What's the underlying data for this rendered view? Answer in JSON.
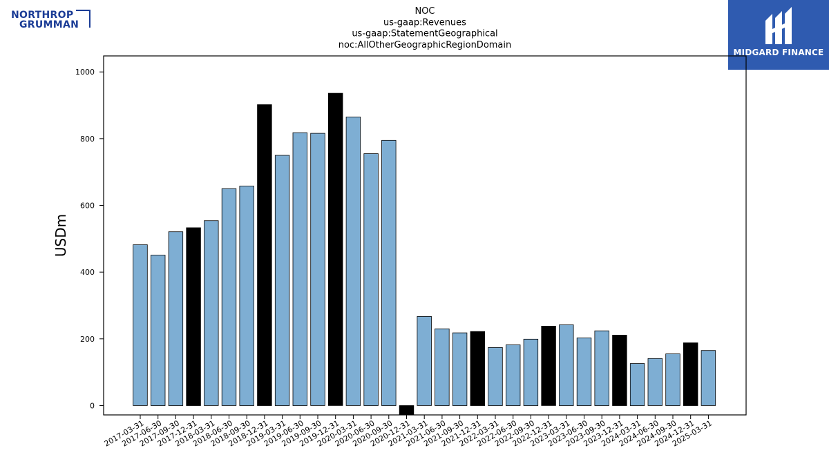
{
  "header": {
    "company_logo": "NORTHROP GRUMMAN",
    "company_logo_line1": "NORTHROP",
    "company_logo_line2": "GRUMMAN",
    "badge_text": "MIDGARD FINANCE"
  },
  "chart_data": {
    "type": "bar",
    "title_lines": [
      "NOC",
      "us-gaap:Revenues",
      "us-gaap:StatementGeographical",
      "noc:AllOtherGeographicRegionDomain"
    ],
    "ylabel": "USDm",
    "xlabel": "",
    "ylim": [
      -28,
      1048
    ],
    "yticks": [
      0,
      200,
      400,
      600,
      800,
      1000
    ],
    "grid": false,
    "colors": {
      "quarter": "#7eaed3",
      "year_end": "#000000",
      "edge": "#000000"
    },
    "categories": [
      "2017-03-31",
      "2017-06-30",
      "2017-09-30",
      "2017-12-31",
      "2018-03-31",
      "2018-06-30",
      "2018-09-30",
      "2018-12-31",
      "2019-03-31",
      "2019-06-30",
      "2019-09-30",
      "2019-12-31",
      "2020-03-31",
      "2020-06-30",
      "2020-09-30",
      "2020-12-31",
      "2021-03-31",
      "2021-06-30",
      "2021-09-30",
      "2021-12-31",
      "2022-03-31",
      "2022-06-30",
      "2022-09-30",
      "2022-12-31",
      "2023-03-31",
      "2023-06-30",
      "2023-09-30",
      "2023-12-31",
      "2024-03-31",
      "2024-06-30",
      "2024-09-30",
      "2024-12-31",
      "2025-03-31"
    ],
    "values": [
      482,
      451,
      521,
      533,
      554,
      650,
      658,
      902,
      750,
      818,
      816,
      936,
      865,
      755,
      795,
      -28,
      267,
      230,
      218,
      222,
      174,
      182,
      199,
      238,
      242,
      203,
      224,
      211,
      126,
      141,
      155,
      188,
      165
    ]
  }
}
